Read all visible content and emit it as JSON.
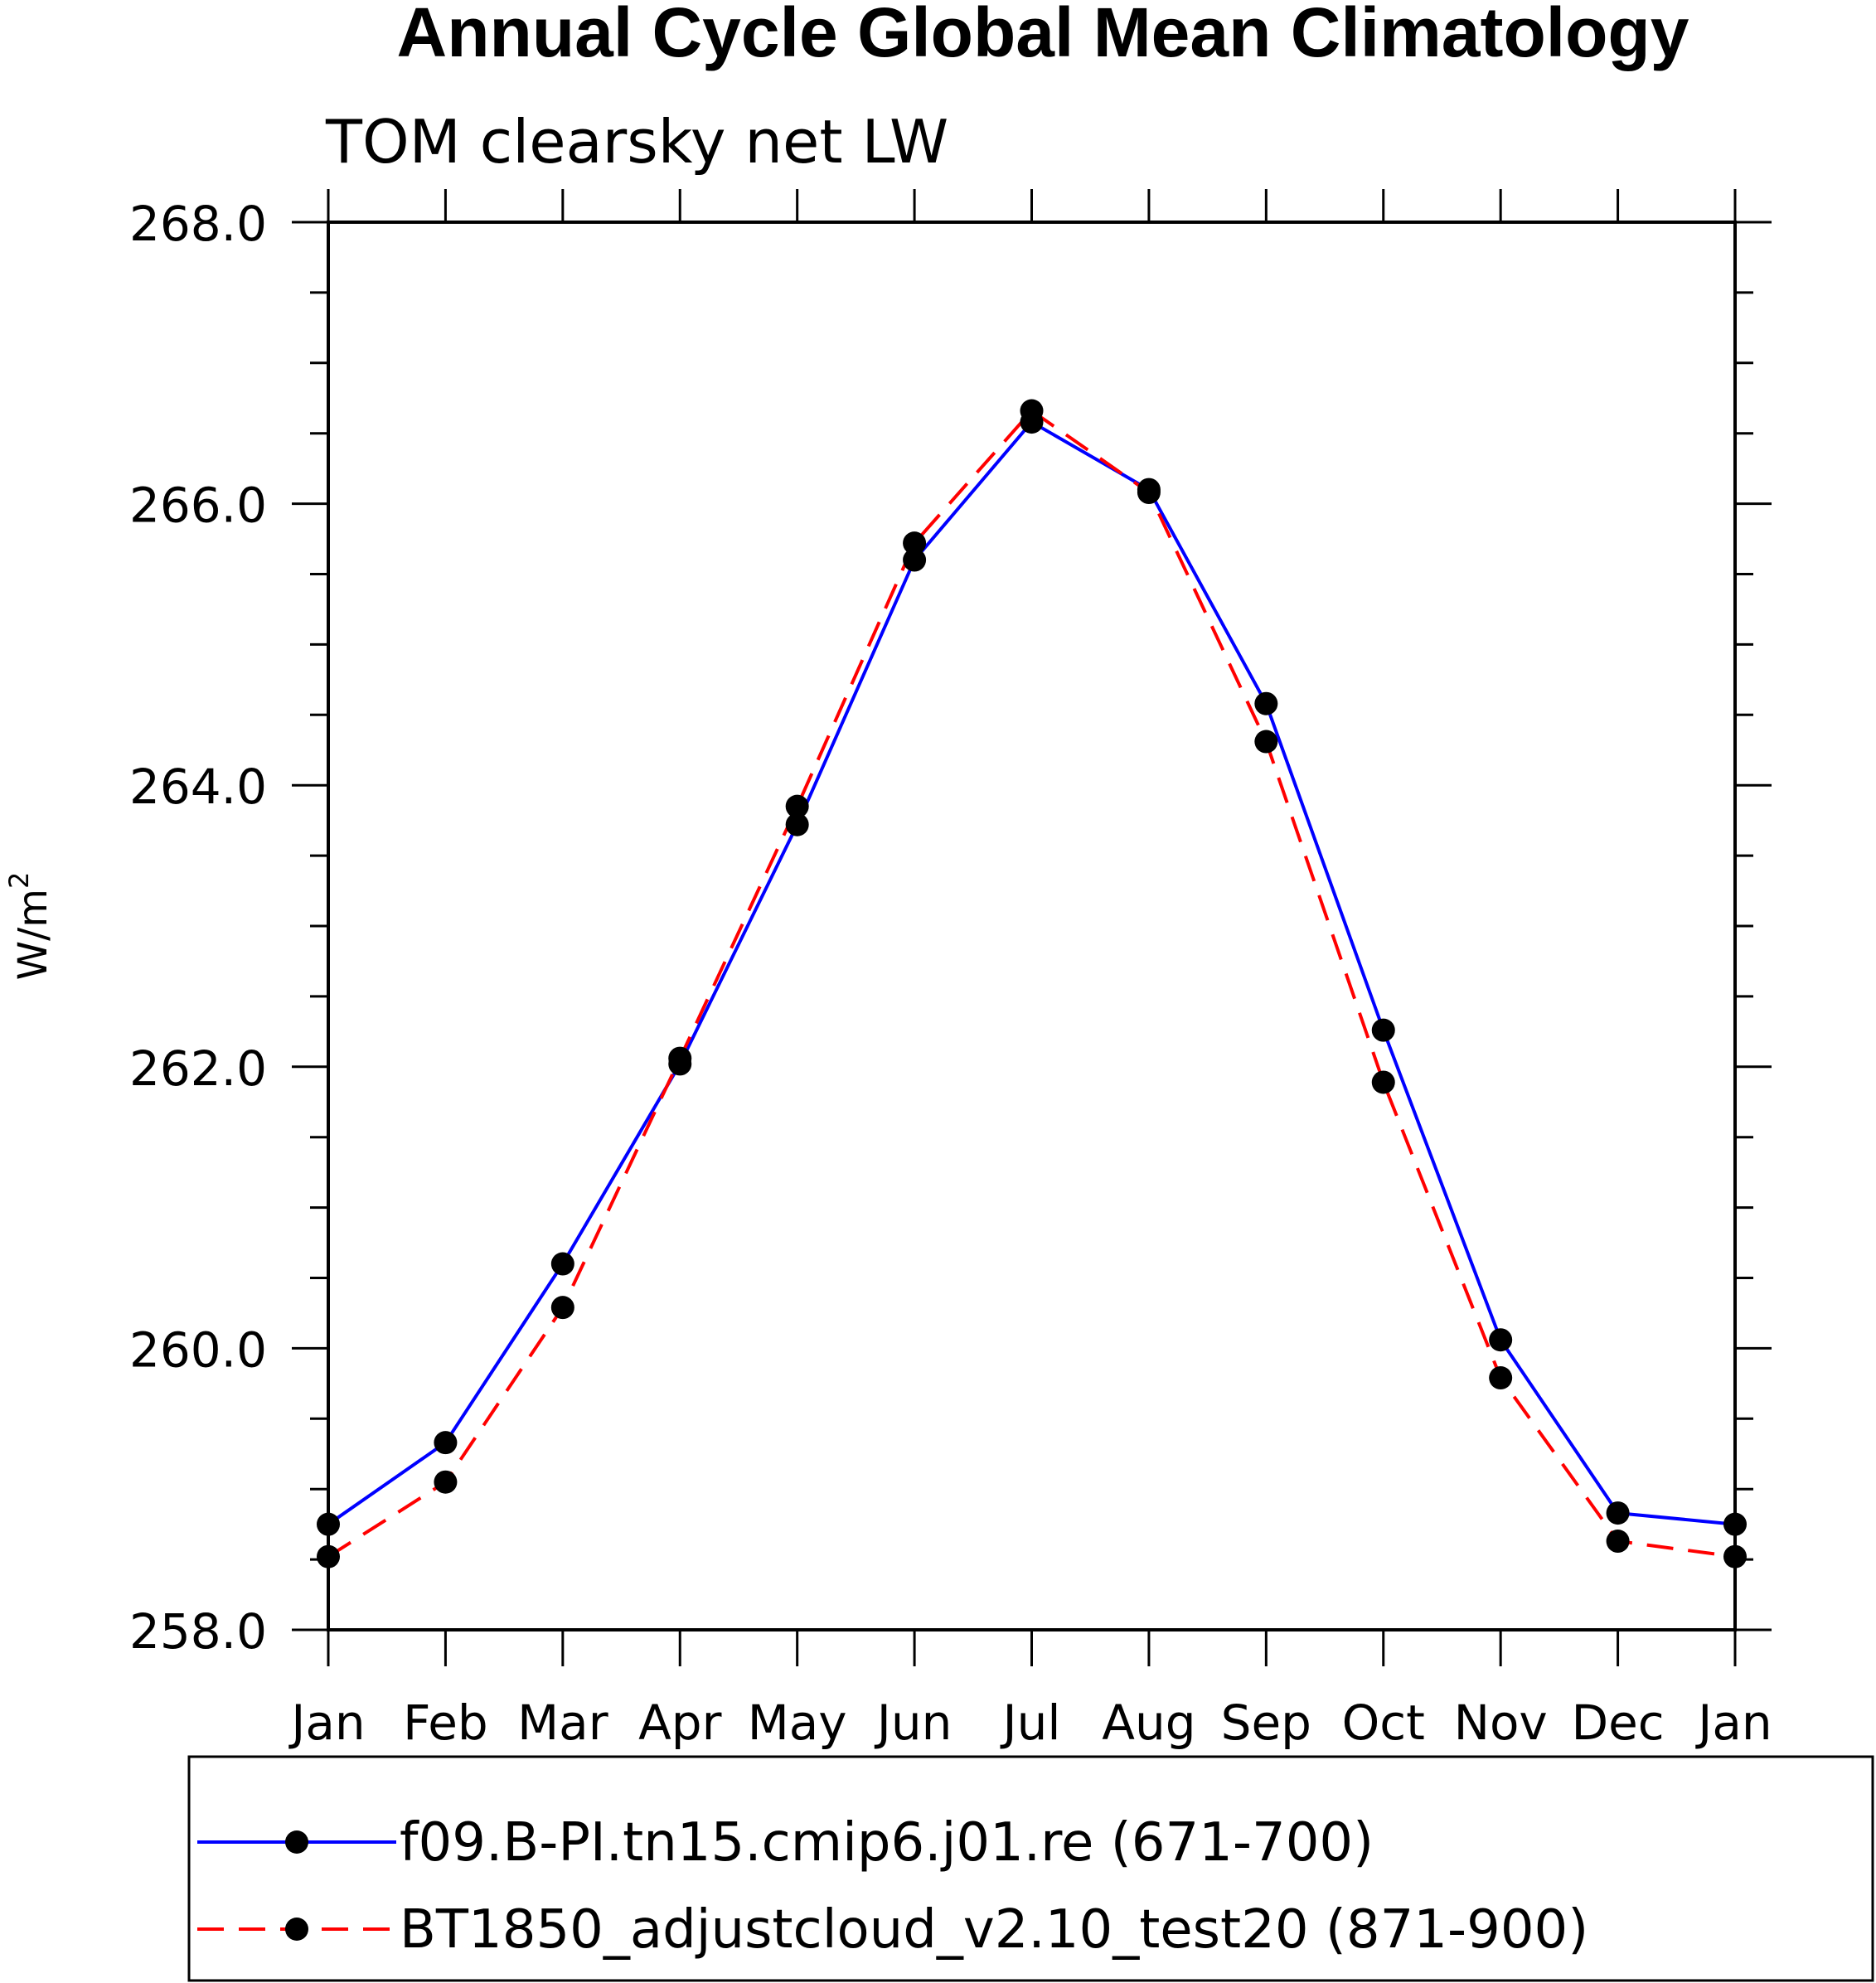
{
  "chart_data": {
    "type": "line",
    "title": "Annual Cycle Global Mean Climatology",
    "subtitle": "TOM clearsky net LW",
    "xlabel": "",
    "ylabel": "W/m",
    "ylabel_superscript": "2",
    "ylim": [
      258.0,
      268.0
    ],
    "yticks": [
      "258.0",
      "260.0",
      "262.0",
      "264.0",
      "266.0",
      "268.0"
    ],
    "categories": [
      "Jan",
      "Feb",
      "Mar",
      "Apr",
      "May",
      "Jun",
      "Jul",
      "Aug",
      "Sep",
      "Oct",
      "Nov",
      "Dec",
      "Jan"
    ],
    "grid": false,
    "legend_position": "bottom",
    "series": [
      {
        "name": "f09.B-PI.tn15.cmip6.j01.re (671-700)",
        "color": "#0000ff",
        "dash": "solid",
        "values": [
          258.75,
          259.33,
          260.6,
          262.02,
          263.72,
          265.6,
          266.58,
          266.1,
          264.58,
          262.26,
          260.06,
          258.83,
          258.75
        ]
      },
      {
        "name": "BT1850_adjustcloud_v2.10_test20 (871-900)",
        "color": "#ff0000",
        "dash": "dashed",
        "values": [
          258.52,
          259.05,
          260.29,
          262.06,
          263.85,
          265.72,
          266.66,
          266.08,
          264.31,
          261.89,
          259.79,
          258.63,
          258.52
        ]
      }
    ]
  }
}
